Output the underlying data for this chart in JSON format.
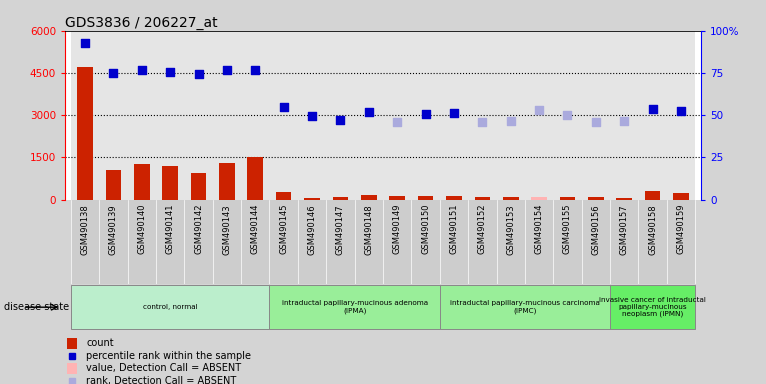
{
  "title": "GDS3836 / 206227_at",
  "samples": [
    "GSM490138",
    "GSM490139",
    "GSM490140",
    "GSM490141",
    "GSM490142",
    "GSM490143",
    "GSM490144",
    "GSM490145",
    "GSM490146",
    "GSM490147",
    "GSM490148",
    "GSM490149",
    "GSM490150",
    "GSM490151",
    "GSM490152",
    "GSM490153",
    "GSM490154",
    "GSM490155",
    "GSM490156",
    "GSM490157",
    "GSM490158",
    "GSM490159"
  ],
  "count_values": [
    4700,
    1050,
    1250,
    1200,
    950,
    1300,
    1500,
    280,
    75,
    100,
    180,
    130,
    120,
    140,
    100,
    100,
    100,
    110,
    90,
    60,
    300,
    220
  ],
  "count_is_absent": [
    false,
    false,
    false,
    false,
    false,
    false,
    false,
    false,
    false,
    false,
    false,
    false,
    false,
    false,
    false,
    false,
    true,
    false,
    false,
    false,
    false,
    false
  ],
  "count_absent_vals": [
    0,
    0,
    0,
    0,
    0,
    0,
    0,
    0,
    0,
    0,
    0,
    0,
    0,
    0,
    0,
    0,
    110,
    0,
    0,
    0,
    0,
    0
  ],
  "rank_present_vals": [
    5550,
    4500,
    4600,
    4550,
    4480,
    4600,
    4620,
    3280,
    2960,
    2820,
    3100,
    null,
    3060,
    3080,
    null,
    null,
    null,
    null,
    null,
    null,
    3220,
    3160
  ],
  "rank_absent_vals": [
    null,
    null,
    null,
    null,
    null,
    null,
    null,
    null,
    null,
    null,
    null,
    2750,
    null,
    null,
    2760,
    2780,
    3200,
    3010,
    2760,
    2780,
    null,
    null
  ],
  "ylim_left": [
    0,
    6000
  ],
  "ylim_right": [
    0,
    100
  ],
  "yticks_left": [
    0,
    1500,
    3000,
    4500,
    6000
  ],
  "ytick_labels_left": [
    "0",
    "1500",
    "3000",
    "4500",
    "6000"
  ],
  "yticks_right": [
    0,
    25,
    50,
    75,
    100
  ],
  "ytick_labels_right": [
    "0",
    "25",
    "50",
    "75",
    "100%"
  ],
  "hlines": [
    1500,
    3000,
    4500
  ],
  "bar_color": "#cc2200",
  "bar_absent_color": "#ffb3b3",
  "dot_color": "#0000cc",
  "dot_absent_color": "#aaaadd",
  "col_bg_color": "#cccccc",
  "bg_color": "#d4d4d4",
  "disease_groups": [
    {
      "label": "control, normal",
      "start": 0,
      "end": 6,
      "color": "#bbeecc"
    },
    {
      "label": "intraductal papillary-mucinous adenoma\n(IPMA)",
      "start": 7,
      "end": 12,
      "color": "#99ee99"
    },
    {
      "label": "intraductal papillary-mucinous carcinoma\n(IPMC)",
      "start": 13,
      "end": 18,
      "color": "#99ee99"
    },
    {
      "label": "invasive cancer of intraductal\npapillary-mucinous\nneoplasm (IPMN)",
      "start": 19,
      "end": 21,
      "color": "#66ee66"
    }
  ],
  "legend_items": [
    {
      "color": "#cc2200",
      "kind": "bar",
      "label": "count"
    },
    {
      "color": "#0000cc",
      "kind": "dot",
      "label": "percentile rank within the sample"
    },
    {
      "color": "#ffb3b3",
      "kind": "bar",
      "label": "value, Detection Call = ABSENT"
    },
    {
      "color": "#aaaadd",
      "kind": "dot",
      "label": "rank, Detection Call = ABSENT"
    }
  ]
}
